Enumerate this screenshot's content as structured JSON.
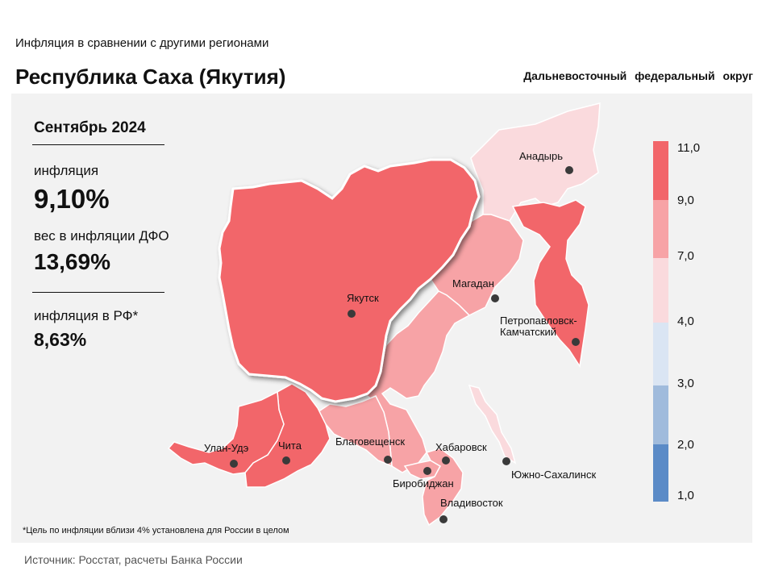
{
  "header": {
    "subtitle": "Инфляция в сравнении с другими регионами",
    "title": "Республика Саха (Якутия)",
    "district": "Дальневосточный федеральный округ"
  },
  "info": {
    "period": "Сентябрь 2024",
    "inflation_label": "инфляция",
    "inflation_value": "9,10%",
    "weight_label": "вес в инфляции ДФО",
    "weight_value": "13,69%",
    "rf_label": "инфляция в РФ*",
    "rf_value": "8,63%"
  },
  "footnote": "*Цель по инфляции вблизи 4% установлена для России в целом",
  "source": "Источник: Росстат, расчеты Банка России",
  "colors": {
    "high": "#f2666a",
    "mid_high": "#f7a3a6",
    "mid": "#fadadd",
    "low": "#dae5f3",
    "lower": "#a0bbdc",
    "lowest": "#5b8bc7",
    "panel": "#f2f2f2"
  },
  "legend": {
    "ticks": [
      "11,0",
      "9,0",
      "7,0",
      "4,0",
      "3,0",
      "2,0",
      "1,0"
    ]
  },
  "cities": {
    "anadyr": "Анадырь",
    "yakutsk": "Якутск",
    "magadan": "Магадан",
    "petropavlovsk_1": "Петропавловск-",
    "petropavlovsk_2": "Камчатский",
    "ulan_ude": "Улан-Удэ",
    "chita": "Чита",
    "blagoveshchensk": "Благовещенск",
    "khabarovsk": "Хабаровск",
    "birobidzhan": "Биробиджан",
    "yuzhno": "Южно-Сахалинск",
    "vladivostok": "Владивосток"
  }
}
